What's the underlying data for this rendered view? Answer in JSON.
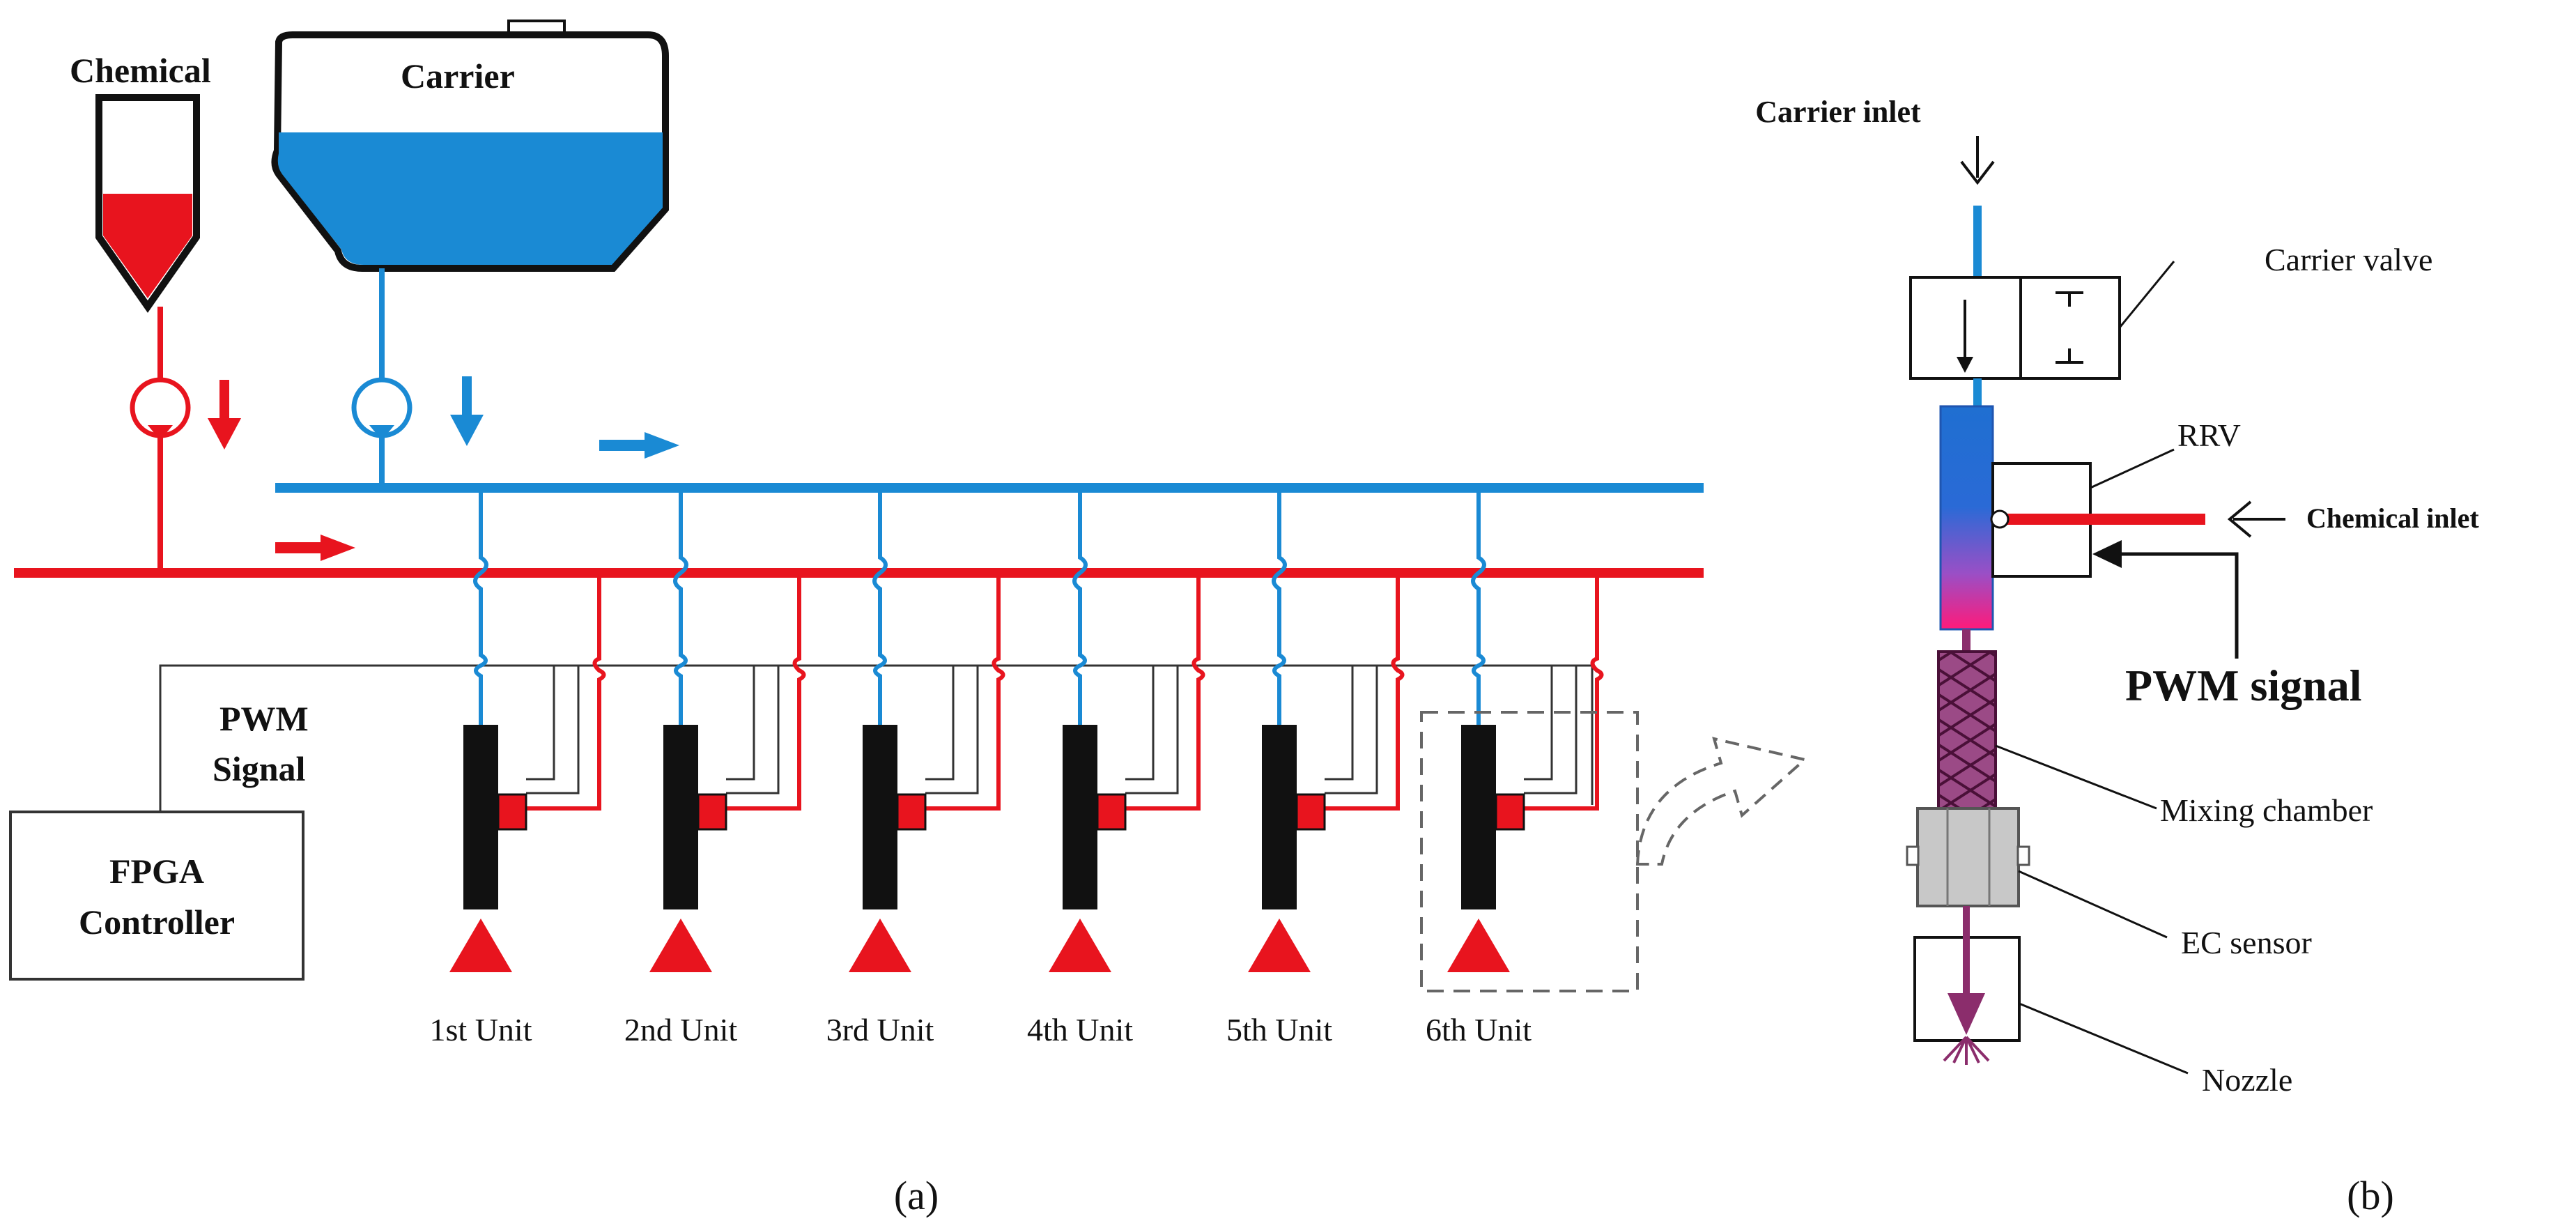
{
  "panel_a": {
    "caption": "(a)",
    "chemical_label": "Chemical",
    "carrier_label": "Carrier",
    "pwm_label_line1": "PWM",
    "pwm_label_line2": "Signal",
    "controller_line1": "FPGA",
    "controller_line2": "Controller",
    "units": [
      "1st Unit",
      "2nd Unit",
      "3rd Unit",
      "4th Unit",
      "5th Unit",
      "6th Unit"
    ]
  },
  "panel_b": {
    "caption": "(b)",
    "carrier_inlet": "Carrier inlet",
    "chemical_inlet": "Chemical inlet",
    "pwm_signal": "PWM signal",
    "carrier_valve": "Carrier valve",
    "rrv": "RRV",
    "mixing_chamber": "Mixing chamber",
    "ec_sensor": "EC sensor",
    "nozzle": "Nozzle"
  },
  "colors": {
    "carrier": "#1a8ad4",
    "chemical": "#e8141e",
    "valve_body": "#111111",
    "mix": "#8b2d6c",
    "sensor": "#c8c8c8"
  }
}
